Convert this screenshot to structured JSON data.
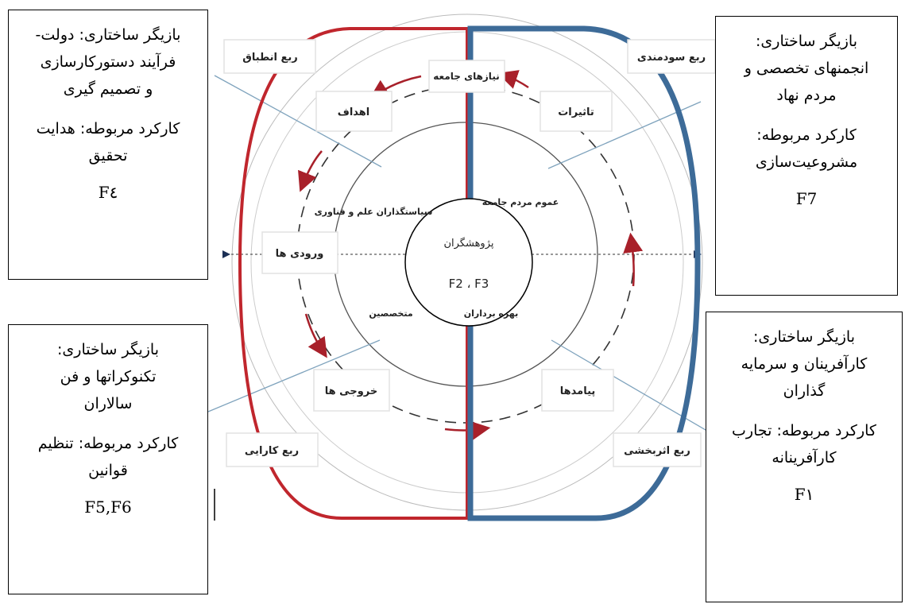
{
  "boxes": [
    {
      "actor": [
        "بازیگر ساختاری: دولت-",
        "فرآیند دستورکارسازی",
        "و تصمیم گیری"
      ],
      "function": [
        "کارکرد مربوطه: هدایت",
        "تحقیق"
      ],
      "code": "F٤"
    },
    {
      "actor": [
        "بازیگر ساختاری:",
        "تکنوکراتها و فن",
        "سالاران"
      ],
      "function": [
        "کارکرد مربوطه: تنظیم",
        "قوانین"
      ],
      "code": "F5,F6"
    },
    {
      "actor": [
        "بازیگر ساختاری:",
        "انجمنهای تخصصی و",
        "مردم نهاد"
      ],
      "function": [
        "کارکرد مربوطه:",
        "مشروعیت‌سازی"
      ],
      "code": "F7"
    },
    {
      "actor": [
        "بازیگر ساختاری:",
        "کارآفرینان و سرمایه",
        "گذاران"
      ],
      "function": [
        "کارکرد مربوطه: تجارب",
        "کارآفرینانه"
      ],
      "code": "F١"
    }
  ],
  "quadrants": [
    "ربع انطباق",
    "ربع سودمندی",
    "ربع کارایی",
    "ربع اثربخشی"
  ],
  "stages": [
    "نیازهای جامعه",
    "اهداف",
    "تاثیرات",
    "ورودی ها",
    "خروجی ها",
    "پیامدها"
  ],
  "actors": [
    "سیاستگذاران علم و فناوری",
    "عموم مردم جامعه",
    "متخصصین",
    "بهره برداران"
  ],
  "center": {
    "label": "پژوهشگران",
    "codes": "F2 ، F3"
  }
}
